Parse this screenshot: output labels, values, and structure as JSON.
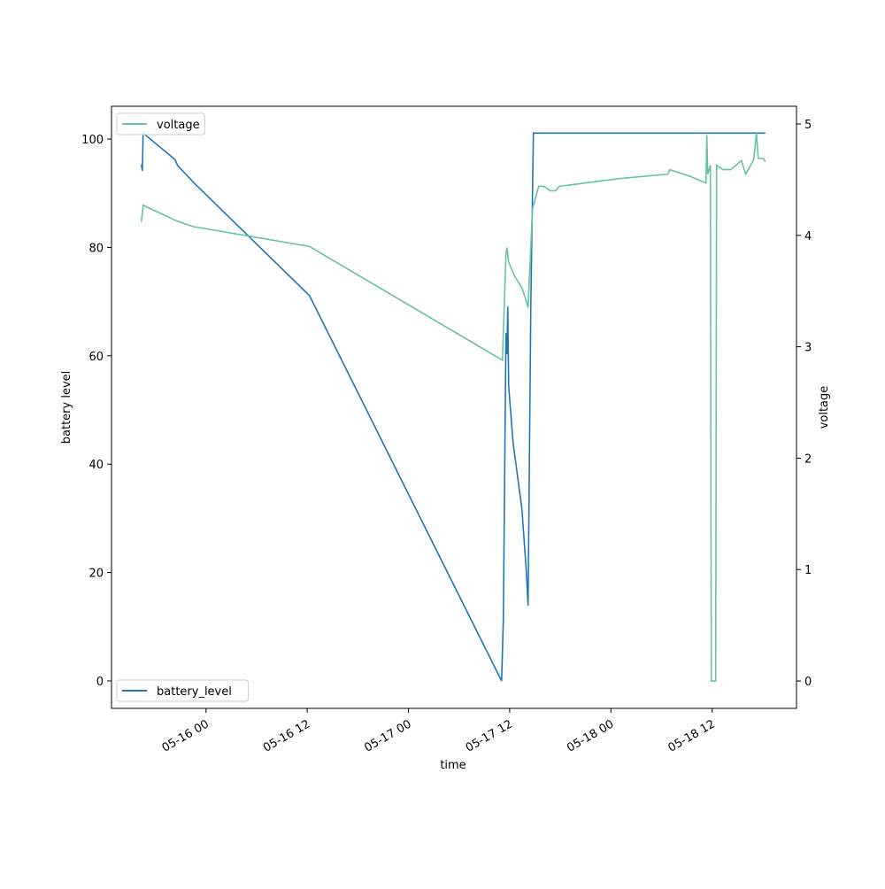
{
  "chart_data": {
    "type": "line",
    "x_label": "time",
    "y_label": "battery level",
    "y2_label": "voltage",
    "xlim": [
      -11.2,
      70
    ],
    "ylim": [
      -5.07,
      106.05
    ],
    "y2lim": [
      -0.246,
      5.159
    ],
    "xticks": [
      {
        "value": 0,
        "label": "05-16 00"
      },
      {
        "value": 12,
        "label": "05-16 12"
      },
      {
        "value": 24,
        "label": "05-17 00"
      },
      {
        "value": 36,
        "label": "05-17 12"
      },
      {
        "value": 48,
        "label": "05-18 00"
      },
      {
        "value": 60,
        "label": "05-18 12"
      }
    ],
    "yticks": [
      0,
      20,
      40,
      60,
      80,
      100
    ],
    "y2ticks": [
      0,
      1,
      2,
      3,
      4,
      5
    ],
    "series": [
      {
        "name": "battery_level",
        "color": "#1f77b4",
        "axis": "y",
        "legend": "lower left",
        "x": [
          -7.66,
          -7.55,
          -7.45,
          -3.67,
          -3.36,
          -1.36,
          12.27,
          35.04,
          35.25,
          35.56,
          35.67,
          35.77,
          35.88,
          36.4,
          36.82,
          37.45,
          37.97,
          38.18,
          38.5,
          38.81,
          66.3
        ],
        "values": [
          95.3,
          94.1,
          101.1,
          96.2,
          95.1,
          91.8,
          71.1,
          0,
          11.3,
          64.2,
          60.3,
          69.1,
          54.4,
          44.0,
          39.1,
          31.7,
          20.3,
          13.9,
          68.5,
          101.1,
          101.1
        ]
      },
      {
        "name": "voltage",
        "color": "#66c2a5",
        "axis": "y2",
        "legend": "upper left",
        "x": [
          -7.66,
          -7.45,
          -3.46,
          -2.73,
          -1.57,
          12.27,
          35.14,
          35.56,
          35.67,
          35.88,
          36.61,
          37.45,
          37.97,
          38.18,
          38.71,
          39.44,
          40.07,
          40.81,
          41.44,
          41.86,
          48.99,
          54.76,
          54.97,
          57.38,
          59.27,
          59.37,
          59.48,
          59.79,
          59.9,
          60.42,
          60.53,
          61.26,
          62.2,
          63.46,
          63.99,
          64.93,
          65.25,
          65.46,
          66.09,
          66.3
        ],
        "values": [
          4.12,
          4.27,
          4.13,
          4.11,
          4.08,
          3.9,
          2.88,
          3.83,
          3.89,
          3.76,
          3.63,
          3.53,
          3.41,
          3.35,
          4.24,
          4.44,
          4.44,
          4.4,
          4.4,
          4.44,
          4.51,
          4.55,
          4.59,
          4.53,
          4.47,
          4.9,
          4.55,
          4.63,
          0,
          0,
          4.63,
          4.59,
          4.59,
          4.67,
          4.55,
          4.68,
          4.92,
          4.69,
          4.69,
          4.66
        ]
      }
    ]
  }
}
